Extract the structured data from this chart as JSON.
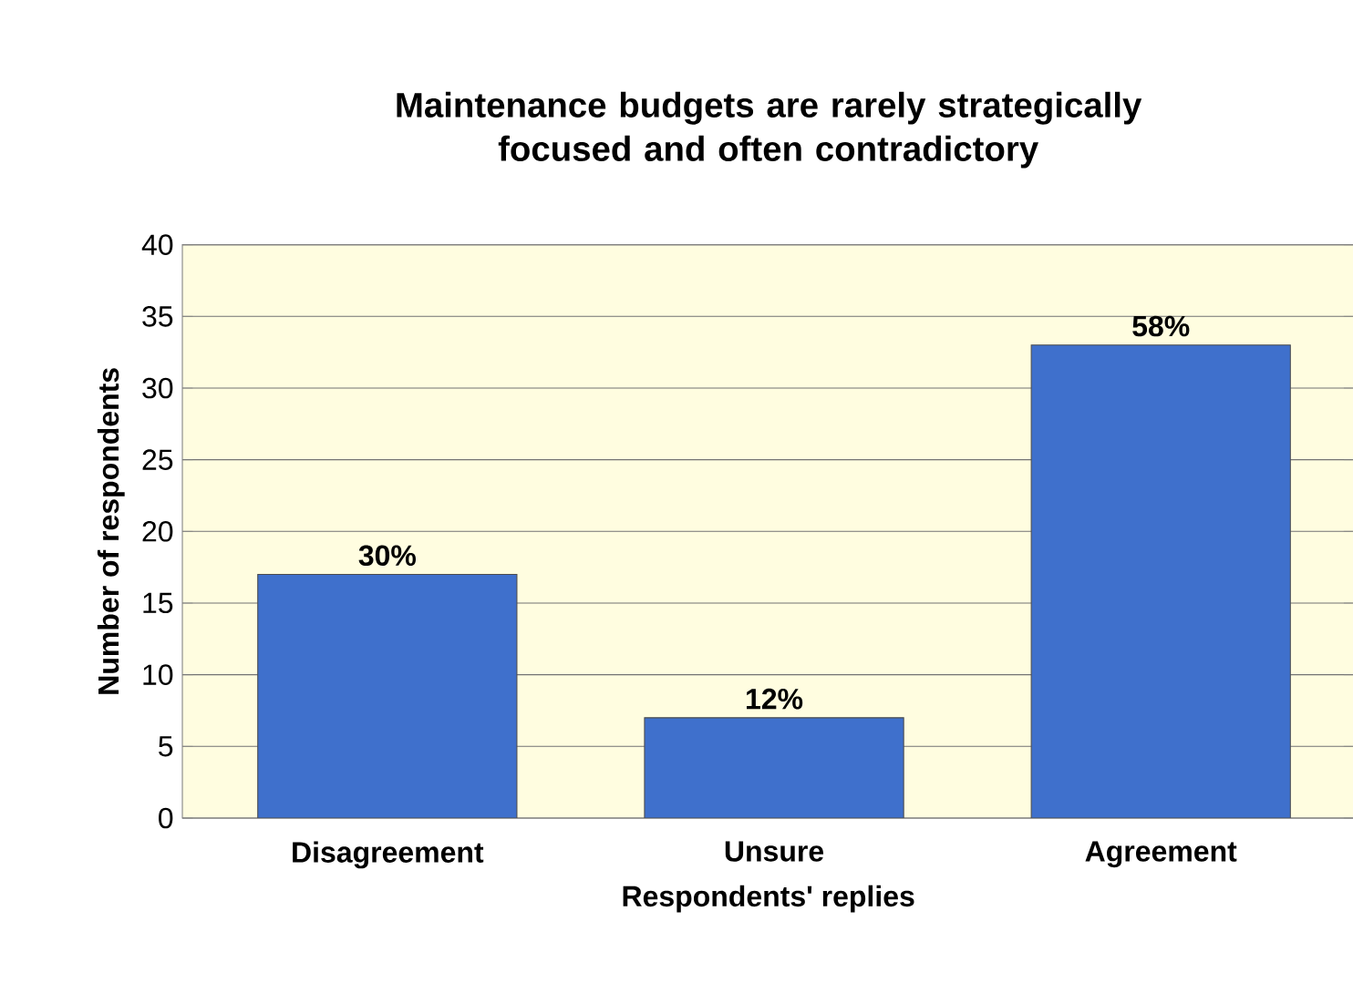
{
  "chart_data": {
    "type": "bar",
    "title": "Maintenance budgets are rarely strategically focused and often contradictory",
    "xlabel": "Respondents' replies",
    "ylabel": "Number of respondents",
    "categories": [
      "Disagreement",
      "Unsure",
      "Agreement"
    ],
    "values": [
      17,
      7,
      33
    ],
    "annotations": [
      {
        "text": "30%",
        "x": "Disagreement",
        "y": 17
      },
      {
        "text": "12%",
        "x": "Unsure",
        "y": 7
      },
      {
        "text": "58%",
        "x": "Agreement",
        "y": 33
      }
    ],
    "color": "#3f70cc",
    "ylim": [
      0,
      40
    ],
    "yticks": [
      0,
      5,
      10,
      15,
      20,
      25,
      30,
      35,
      40
    ],
    "grid": "y"
  }
}
